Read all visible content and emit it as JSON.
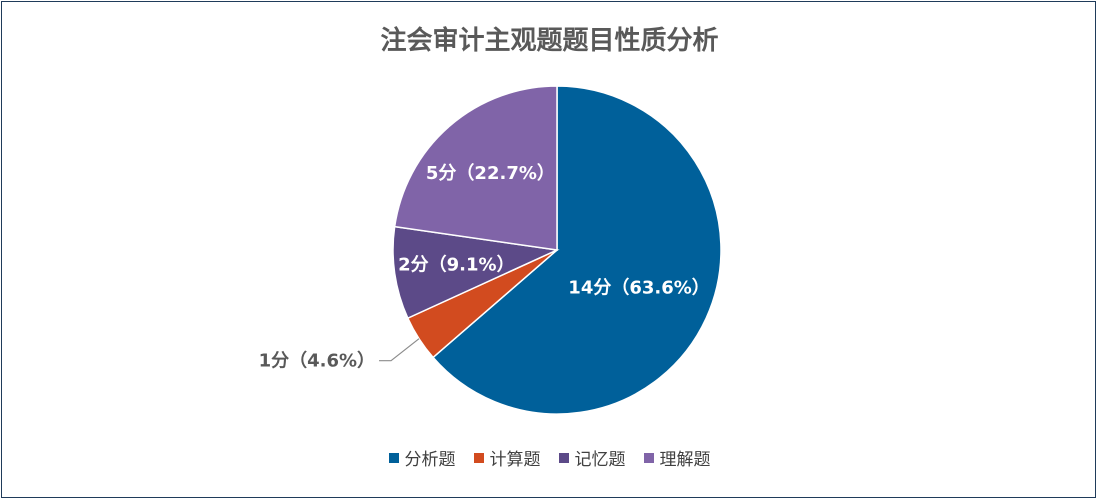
{
  "chart_data": {
    "type": "pie",
    "title": "注会审计主观题题目性质分析",
    "categories": [
      "分析题",
      "计算题",
      "记忆题",
      "理解题"
    ],
    "values": [
      14,
      1,
      2,
      5
    ],
    "percents": [
      63.6,
      4.6,
      9.1,
      22.7
    ],
    "labels": [
      "14分（63.6%）",
      "1分（4.6%）",
      "2分（9.1%）",
      "5分（22.7%）"
    ],
    "colors": [
      "#00609a",
      "#d24b1f",
      "#5c4a88",
      "#8064a8"
    ],
    "legend_position": "bottom"
  }
}
